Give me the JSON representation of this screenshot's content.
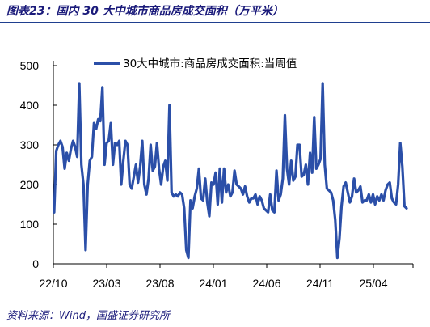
{
  "header": {
    "title": "图表23：国内 30 大中城市商品房成交面积（万平米）"
  },
  "footer": {
    "source": "资料来源：Wind，国盛证券研究所"
  },
  "chart_data": {
    "type": "line",
    "title": "图表23：国内 30 大中城市商品房成交面积（万平米）",
    "xlabel": "",
    "ylabel": "",
    "ylim": [
      0,
      500
    ],
    "yticks": [
      0,
      100,
      200,
      300,
      400,
      500
    ],
    "xticks": [
      "22/10",
      "23/03",
      "23/08",
      "24/01",
      "24/06",
      "24/11",
      "25/04"
    ],
    "grid": false,
    "legend_position": "top",
    "colors": {
      "line": "#2b4fa8",
      "axis": "#000000",
      "rule": "#1f3f8f"
    },
    "series": [
      {
        "name": "30大中城市:商品房成交面积:当周值",
        "values": [
          130,
          285,
          300,
          310,
          295,
          240,
          280,
          260,
          290,
          310,
          295,
          270,
          455,
          250,
          200,
          35,
          200,
          260,
          270,
          355,
          340,
          365,
          360,
          445,
          250,
          305,
          310,
          355,
          250,
          305,
          300,
          310,
          200,
          260,
          310,
          300,
          200,
          190,
          220,
          250,
          205,
          245,
          310,
          200,
          175,
          215,
          300,
          235,
          245,
          305,
          240,
          200,
          245,
          260,
          210,
          400,
          180,
          170,
          175,
          170,
          180,
          175,
          140,
          35,
          15,
          160,
          140,
          170,
          190,
          240,
          165,
          160,
          215,
          155,
          120,
          205,
          200,
          230,
          150,
          240,
          155,
          240,
          180,
          200,
          170,
          180,
          235,
          200,
          195,
          190,
          175,
          195,
          170,
          155,
          165,
          165,
          175,
          150,
          170,
          160,
          140,
          135,
          130,
          175,
          135,
          130,
          235,
          160,
          175,
          215,
          375,
          240,
          200,
          260,
          210,
          220,
          300,
          300,
          220,
          225,
          250,
          200,
          280,
          230,
          370,
          240,
          250,
          265,
          455,
          250,
          190,
          185,
          180,
          160,
          110,
          15,
          65,
          145,
          195,
          205,
          180,
          155,
          170,
          215,
          180,
          185,
          195,
          155,
          160,
          160,
          175,
          155,
          175,
          150,
          170,
          160,
          175,
          160,
          185,
          200,
          205,
          165,
          155,
          150,
          200,
          305,
          245,
          145,
          140
        ]
      }
    ]
  }
}
